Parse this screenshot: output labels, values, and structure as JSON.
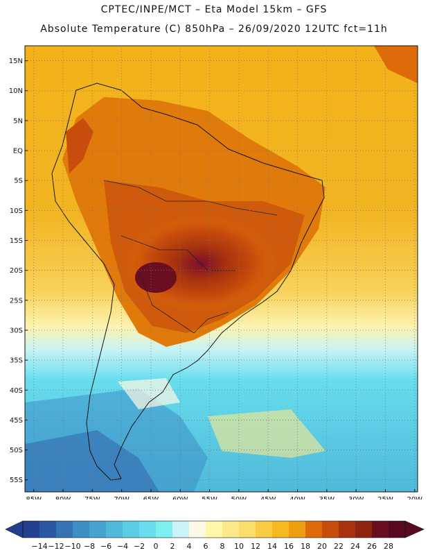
{
  "title_line1": "CPTEC/INPE/MCT –  Eta Model 15km – GFS",
  "title_line2": "Absolute Temperature (C) 850hPa – 26/09/2020 12UTC fct=11h",
  "lat_labels": [
    "15N",
    "10N",
    "5N",
    "EQ",
    "5S",
    "10S",
    "15S",
    "20S",
    "25S",
    "30S",
    "35S",
    "40S",
    "45S",
    "50S",
    "55S"
  ],
  "lon_labels": [
    "85W",
    "80W",
    "75W",
    "70W",
    "65W",
    "60W",
    "55W",
    "50W",
    "45W",
    "40W",
    "35W",
    "30W",
    "25W",
    "20W"
  ],
  "colorbar": {
    "values": [
      -14,
      -12,
      -10,
      -8,
      -6,
      -4,
      -2,
      0,
      2,
      4,
      6,
      8,
      10,
      12,
      14,
      16,
      18,
      20,
      22,
      24,
      26,
      28
    ],
    "colors": [
      "#233f8f",
      "#2c57a3",
      "#3673b5",
      "#3e8ec6",
      "#46a3cf",
      "#4fb9d9",
      "#5bcde3",
      "#67dded",
      "#7defee",
      "#c9f3f5",
      "#fef8e6",
      "#fff8a8",
      "#fde989",
      "#fbdd6b",
      "#f8cb42",
      "#f4ba20",
      "#ee9f11",
      "#de6b08",
      "#c84c0b",
      "#aa330f",
      "#8e2511",
      "#6a0f22",
      "#5a0a20"
    ]
  }
}
